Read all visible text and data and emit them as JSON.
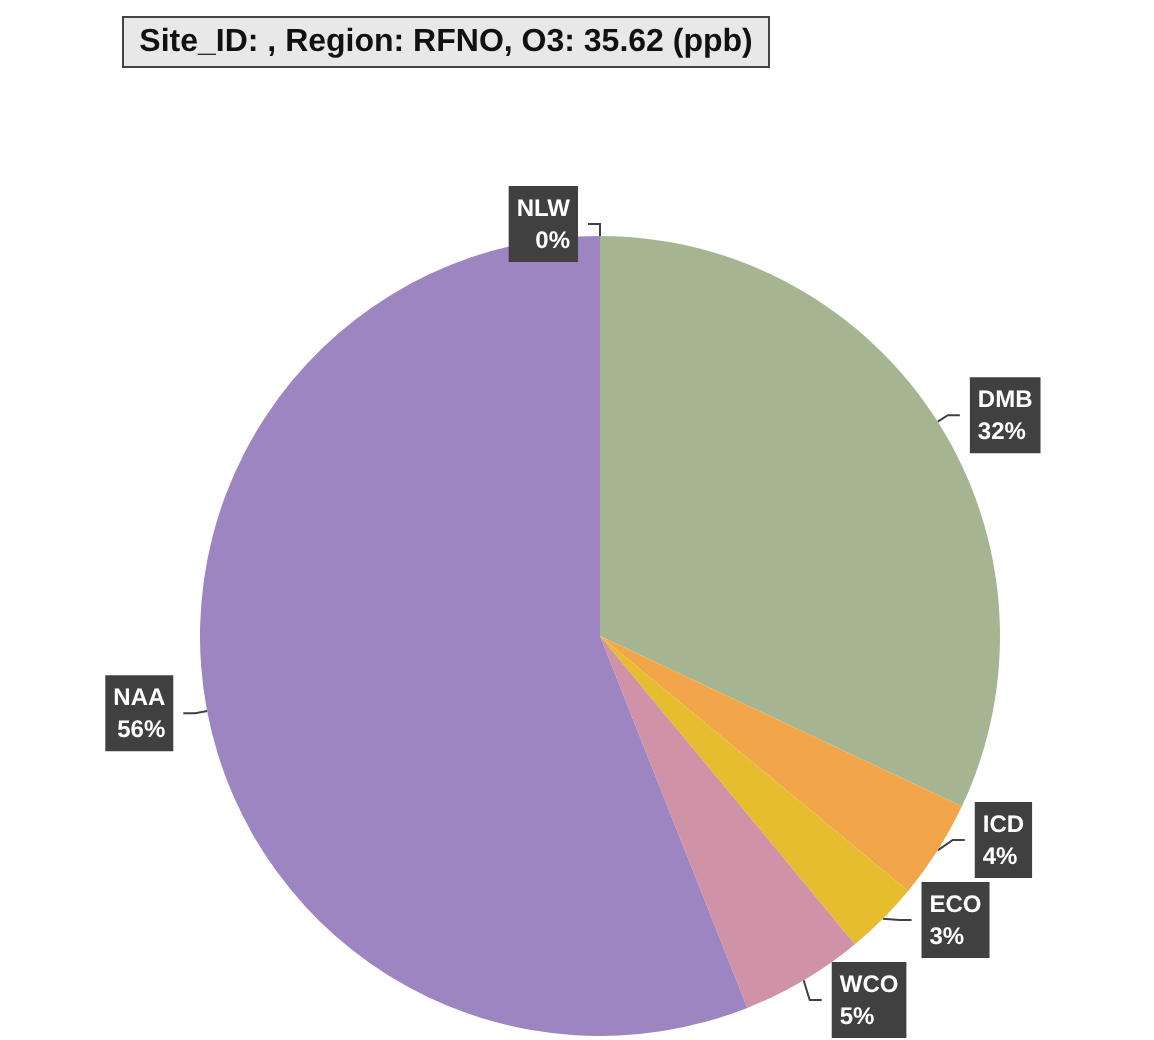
{
  "chart_data": {
    "type": "pie",
    "title": "Site_ID: , Region: RFNO, O3: 35.62 (ppb)",
    "categories": [
      "NLW",
      "DMB",
      "ICD",
      "ECO",
      "WCO",
      "NAA"
    ],
    "values": [
      0,
      32,
      4,
      3,
      5,
      56
    ],
    "value_labels": [
      "0%",
      "32%",
      "4%",
      "3%",
      "5%",
      "56%"
    ],
    "colors": [
      "#6f9fcf",
      "#a5b592",
      "#f3a54a",
      "#e6bd2e",
      "#d092a7",
      "#9c85c0"
    ],
    "legend": false
  }
}
